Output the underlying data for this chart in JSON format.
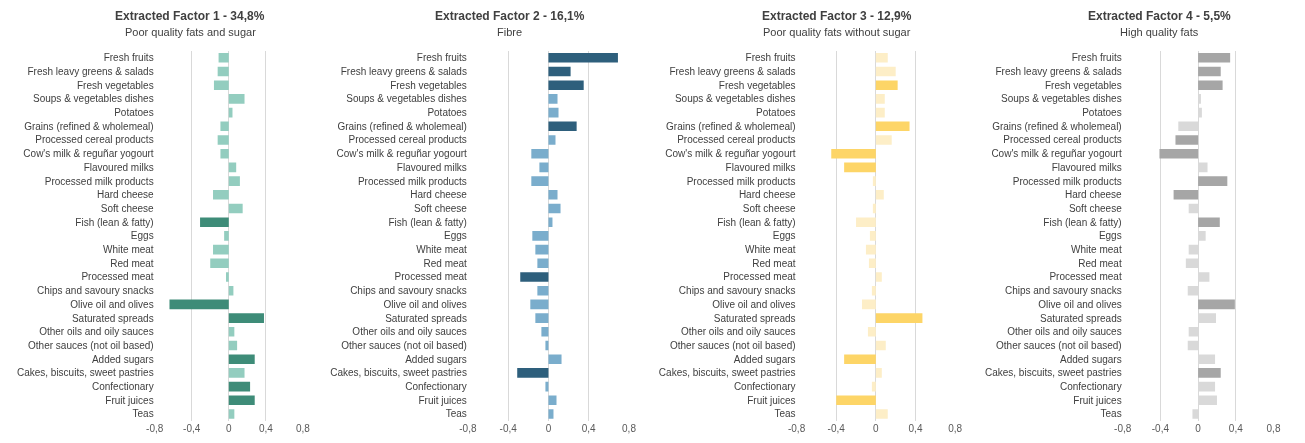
{
  "chart_data": [
    {
      "type": "bar",
      "orientation": "horizontal",
      "title": "Extracted Factor 1 - 34,8%",
      "subtitle": "Poor quality fats and sugar",
      "grid": "x",
      "categories": [
        "Fresh fruits",
        "Fresh leavy greens & salads",
        "Fresh vegetables",
        "Soups & vegetables dishes",
        "Potatoes",
        "Grains (refined & wholemeal)",
        "Processed cereal products",
        "Cow's milk & reguñar yogourt",
        "Flavoured milks",
        "Processed milk products",
        "Hard cheese",
        "Soft cheese",
        "Fish (lean & fatty)",
        "Eggs",
        "White meat",
        "Red meat",
        "Processed meat",
        "Chips and savoury snacks",
        "Olive oil and olives",
        "Saturated spreads",
        "Other oils and oily sauces",
        "Other sauces (not oil based)",
        "Added sugars",
        "Cakes, biscuits, sweet pastries",
        "Confectionary",
        "Fruit juices",
        "Teas"
      ],
      "values": [
        -0.11,
        -0.12,
        -0.16,
        0.17,
        0.04,
        -0.09,
        -0.12,
        -0.09,
        0.08,
        0.12,
        -0.17,
        0.15,
        -0.31,
        -0.05,
        -0.17,
        -0.2,
        -0.03,
        0.05,
        -0.64,
        0.38,
        0.06,
        0.09,
        0.28,
        0.17,
        0.23,
        0.28,
        0.06
      ],
      "colors": [
        "#93cdbf",
        "#93cdbf",
        "#93cdbf",
        "#93cdbf",
        "#93cdbf",
        "#93cdbf",
        "#93cdbf",
        "#93cdbf",
        "#93cdbf",
        "#93cdbf",
        "#93cdbf",
        "#93cdbf",
        "#3e8c78",
        "#93cdbf",
        "#93cdbf",
        "#93cdbf",
        "#93cdbf",
        "#93cdbf",
        "#3e8c78",
        "#3e8c78",
        "#93cdbf",
        "#93cdbf",
        "#3e8c78",
        "#93cdbf",
        "#3e8c78",
        "#3e8c78",
        "#93cdbf"
      ],
      "xlim": [
        -0.8,
        0.8
      ],
      "xticks": [
        {
          "value": -0.8,
          "label": "-0,8"
        },
        {
          "value": -0.4,
          "label": "-0,4"
        },
        0,
        {
          "value": 0.4,
          "label": "0,4"
        },
        {
          "value": 0.8,
          "label": "0,8"
        }
      ]
    },
    {
      "type": "bar",
      "orientation": "horizontal",
      "title": "Extracted Factor 2 - 16,1%",
      "subtitle": "Fibre",
      "grid": "x",
      "categories": [
        "Fresh fruits",
        "Fresh leavy greens & salads",
        "Fresh vegetables",
        "Soups & vegetables dishes",
        "Potatoes",
        "Grains (refined & wholemeal)",
        "Processed cereal products",
        "Cow's milk & reguñar yogourt",
        "Flavoured milks",
        "Processed milk products",
        "Hard cheese",
        "Soft cheese",
        "Fish (lean & fatty)",
        "Eggs",
        "White meat",
        "Red meat",
        "Processed meat",
        "Chips and savoury snacks",
        "Olive oil and olives",
        "Saturated spreads",
        "Other oils and oily sauces",
        "Other sauces (not oil based)",
        "Added sugars",
        "Cakes, biscuits, sweet pastries",
        "Confectionary",
        "Fruit juices",
        "Teas"
      ],
      "values": [
        0.69,
        0.22,
        0.35,
        0.09,
        0.1,
        0.28,
        0.07,
        -0.17,
        -0.09,
        -0.17,
        0.09,
        0.12,
        0.04,
        -0.16,
        -0.13,
        -0.11,
        -0.28,
        -0.11,
        -0.18,
        -0.13,
        -0.07,
        -0.03,
        0.13,
        -0.31,
        -0.03,
        0.08,
        0.05
      ],
      "colors": [
        "#2e5f7c",
        "#2e5f7c",
        "#2e5f7c",
        "#7aadcc",
        "#7aadcc",
        "#2e5f7c",
        "#7aadcc",
        "#7aadcc",
        "#7aadcc",
        "#7aadcc",
        "#7aadcc",
        "#7aadcc",
        "#7aadcc",
        "#7aadcc",
        "#7aadcc",
        "#7aadcc",
        "#2e5f7c",
        "#7aadcc",
        "#7aadcc",
        "#7aadcc",
        "#7aadcc",
        "#7aadcc",
        "#7aadcc",
        "#2e5f7c",
        "#7aadcc",
        "#7aadcc",
        "#7aadcc"
      ],
      "xlim": [
        -0.8,
        0.8
      ],
      "xticks": [
        {
          "value": -0.8,
          "label": "-0,8"
        },
        {
          "value": -0.4,
          "label": "-0,4"
        },
        0,
        {
          "value": 0.4,
          "label": "0,4"
        },
        {
          "value": 0.8,
          "label": "0,8"
        }
      ]
    },
    {
      "type": "bar",
      "orientation": "horizontal",
      "title": "Extracted Factor 3 - 12,9%",
      "subtitle": "Poor quality fats without sugar",
      "grid": "x",
      "categories": [
        "Fresh fruits",
        "Fresh leavy greens & salads",
        "Fresh vegetables",
        "Soups & vegetables dishes",
        "Potatoes",
        "Grains (refined & wholemeal)",
        "Processed cereal products",
        "Cow's milk & reguñar yogourt",
        "Flavoured milks",
        "Processed milk products",
        "Hard cheese",
        "Soft cheese",
        "Fish (lean & fatty)",
        "Eggs",
        "White meat",
        "Red meat",
        "Processed meat",
        "Chips and savoury snacks",
        "Olive oil and olives",
        "Saturated spreads",
        "Other oils and oily sauces",
        "Other sauces (not oil based)",
        "Added sugars",
        "Cakes, biscuits, sweet pastries",
        "Confectionary",
        "Fruit juices",
        "Teas"
      ],
      "values": [
        0.12,
        0.2,
        0.22,
        0.09,
        0.09,
        0.34,
        0.16,
        -0.45,
        -0.32,
        -0.03,
        0.08,
        -0.03,
        -0.2,
        -0.06,
        -0.1,
        -0.07,
        0.06,
        -0.04,
        -0.14,
        0.47,
        -0.08,
        0.1,
        -0.32,
        0.06,
        -0.04,
        -0.4,
        0.12
      ],
      "colors": [
        "#fdeec7",
        "#fdeec7",
        "#fdd567",
        "#fdeec7",
        "#fdeec7",
        "#fdd567",
        "#fdeec7",
        "#fdd567",
        "#fdd567",
        "#fdeec7",
        "#fdeec7",
        "#fdeec7",
        "#fdeec7",
        "#fdeec7",
        "#fdeec7",
        "#fdeec7",
        "#fdeec7",
        "#fdeec7",
        "#fdeec7",
        "#fdd567",
        "#fdeec7",
        "#fdeec7",
        "#fdd567",
        "#fdeec7",
        "#fdeec7",
        "#fdd567",
        "#fdeec7"
      ],
      "xlim": [
        -0.8,
        0.8
      ],
      "xticks": [
        {
          "value": -0.8,
          "label": "-0,8"
        },
        {
          "value": -0.4,
          "label": "-0,4"
        },
        0,
        {
          "value": 0.4,
          "label": "0,4"
        },
        {
          "value": 0.8,
          "label": "0,8"
        }
      ]
    },
    {
      "type": "bar",
      "orientation": "horizontal",
      "title": "Extracted Factor 4 - 5,5%",
      "subtitle": "High quality fats",
      "grid": "x",
      "categories": [
        "Fresh fruits",
        "Fresh leavy greens & salads",
        "Fresh vegetables",
        "Soups & vegetables dishes",
        "Potatoes",
        "Grains (refined & wholemeal)",
        "Processed cereal products",
        "Cow's milk & reguñar yogourt",
        "Flavoured milks",
        "Processed milk products",
        "Hard cheese",
        "Soft cheese",
        "Fish (lean & fatty)",
        "Eggs",
        "White meat",
        "Red meat",
        "Processed meat",
        "Chips and savoury snacks",
        "Olive oil and olives",
        "Saturated spreads",
        "Other oils and oily sauces",
        "Other sauces (not oil based)",
        "Added sugars",
        "Cakes, biscuits, sweet pastries",
        "Confectionary",
        "Fruit juices",
        "Teas"
      ],
      "values": [
        0.34,
        0.24,
        0.26,
        0.03,
        0.04,
        -0.21,
        -0.24,
        -0.41,
        0.1,
        0.31,
        -0.26,
        -0.1,
        0.23,
        0.08,
        -0.1,
        -0.13,
        0.12,
        -0.11,
        0.39,
        0.19,
        -0.1,
        -0.11,
        0.18,
        0.24,
        0.18,
        0.2,
        -0.06
      ],
      "colors": [
        "#a6a6a6",
        "#a6a6a6",
        "#a6a6a6",
        "#d9d9d9",
        "#d9d9d9",
        "#d9d9d9",
        "#a6a6a6",
        "#a6a6a6",
        "#d9d9d9",
        "#a6a6a6",
        "#a6a6a6",
        "#d9d9d9",
        "#a6a6a6",
        "#d9d9d9",
        "#d9d9d9",
        "#d9d9d9",
        "#d9d9d9",
        "#d9d9d9",
        "#a6a6a6",
        "#d9d9d9",
        "#d9d9d9",
        "#d9d9d9",
        "#d9d9d9",
        "#a6a6a6",
        "#d9d9d9",
        "#d9d9d9",
        "#d9d9d9"
      ],
      "xlim": [
        -0.8,
        0.8
      ],
      "xticks": [
        {
          "value": -0.8,
          "label": "-0,8"
        },
        {
          "value": -0.4,
          "label": "-0,4"
        },
        0,
        {
          "value": 0.4,
          "label": "0,4"
        },
        {
          "value": 0.8,
          "label": "0,8"
        }
      ]
    }
  ]
}
